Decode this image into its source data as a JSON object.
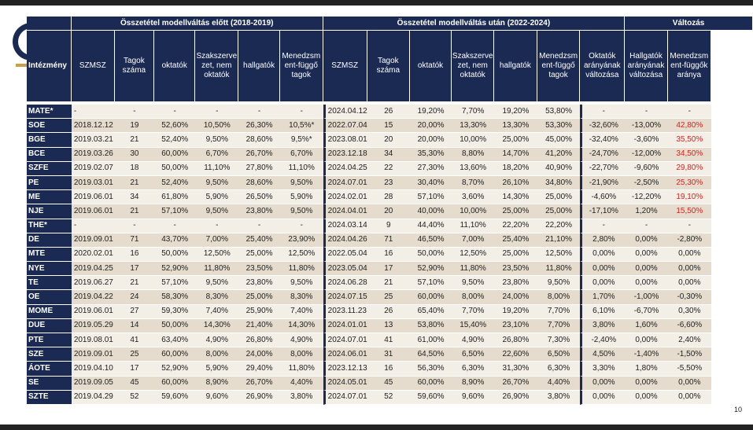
{
  "page_number": "10",
  "table": {
    "groups": [
      "Összetétel modellváltás előtt (2018-2019)",
      "Összetétel modellváltás után (2022-2024)",
      "Változás"
    ],
    "columns": [
      "Intézmény",
      "SZMSZ",
      "Tagok száma",
      "oktatók",
      "Szakszerve zet, nem oktatók",
      "hallgatók",
      "Menedzsm ent-függő tagok",
      "SZMSZ",
      "Tagok száma",
      "oktatók",
      "Szakszerve zet, nem oktatók",
      "hallgatók",
      "Menedzsm ent-függő tagok",
      "Oktatók arányának változása",
      "Hallgatók arányának változása",
      "Menedzsm ent-függők aránya"
    ],
    "red_color": "#e0201c",
    "header_color": "#1b2a52",
    "rows": [
      {
        "inst": "MATE*",
        "before": [
          "-",
          "-",
          "-",
          "-",
          "-",
          "-"
        ],
        "after": [
          "2024.04.12",
          "26",
          "19,20%",
          "7,70%",
          "19,20%",
          "53,80%"
        ],
        "change": [
          "-",
          "-",
          "-"
        ],
        "red": false
      },
      {
        "inst": "SOE",
        "before": [
          "2018.12.12",
          "19",
          "52,60%",
          "10,50%",
          "26,30%",
          "10,5%*"
        ],
        "after": [
          "2022.07.04",
          "15",
          "20,00%",
          "13,30%",
          "13,30%",
          "53,30%"
        ],
        "change": [
          "-32,60%",
          "-13,00%",
          "42,80%"
        ],
        "red": true
      },
      {
        "inst": "BGE",
        "before": [
          "2019.03.21",
          "21",
          "52,40%",
          "9,50%",
          "28,60%",
          "9,5%*"
        ],
        "after": [
          "2023.08.01",
          "20",
          "20,00%",
          "10,00%",
          "25,00%",
          "45,00%"
        ],
        "change": [
          "-32,40%",
          "-3,60%",
          "35,50%"
        ],
        "red": true
      },
      {
        "inst": "BCE",
        "before": [
          "2019.03.26",
          "30",
          "60,00%",
          "6,70%",
          "26,70%",
          "6,70%"
        ],
        "after": [
          "2023.12.18",
          "34",
          "35,30%",
          "8,80%",
          "14,70%",
          "41,20%"
        ],
        "change": [
          "-24,70%",
          "-12,00%",
          "34,50%"
        ],
        "red": true
      },
      {
        "inst": "SZFE",
        "before": [
          "2019.02.07",
          "18",
          "50,00%",
          "11,10%",
          "27,80%",
          "11,10%"
        ],
        "after": [
          "2024.04.25",
          "22",
          "27,30%",
          "13,60%",
          "18,20%",
          "40,90%"
        ],
        "change": [
          "-22,70%",
          "-9,60%",
          "29,80%"
        ],
        "red": true
      },
      {
        "inst": "PE",
        "before": [
          "2019.03.01",
          "21",
          "52,40%",
          "9,50%",
          "28,60%",
          "9,50%"
        ],
        "after": [
          "2024.07.01",
          "23",
          "30,40%",
          "8,70%",
          "26,10%",
          "34,80%"
        ],
        "change": [
          "-21,90%",
          "-2,50%",
          "25,30%"
        ],
        "red": true
      },
      {
        "inst": "ME",
        "before": [
          "2019.06.01",
          "34",
          "61,80%",
          "5,90%",
          "26,50%",
          "5,90%"
        ],
        "after": [
          "2024.02.01",
          "28",
          "57,10%",
          "3,60%",
          "14,30%",
          "25,00%"
        ],
        "change": [
          "-4,60%",
          "-12,20%",
          "19,10%"
        ],
        "red": true
      },
      {
        "inst": "NJE",
        "before": [
          "2019.06.01",
          "21",
          "57,10%",
          "9,50%",
          "23,80%",
          "9,50%"
        ],
        "after": [
          "2024.04.01",
          "20",
          "40,00%",
          "10,00%",
          "25,00%",
          "25,00%"
        ],
        "change": [
          "-17,10%",
          "1,20%",
          "15,50%"
        ],
        "red": true
      },
      {
        "inst": "THE*",
        "before": [
          "-",
          "-",
          "-",
          "-",
          "-",
          "-"
        ],
        "after": [
          "2024.03.14",
          "9",
          "44,40%",
          "11,10%",
          "22,20%",
          "22,20%"
        ],
        "change": [
          "-",
          "-",
          "-"
        ],
        "red": false
      },
      {
        "inst": "DE",
        "before": [
          "2019.09.01",
          "71",
          "43,70%",
          "7,00%",
          "25,40%",
          "23,90%"
        ],
        "after": [
          "2024.04.26",
          "71",
          "46,50%",
          "7,00%",
          "25,40%",
          "21,10%"
        ],
        "change": [
          "2,80%",
          "0,00%",
          "-2,80%"
        ],
        "red": false
      },
      {
        "inst": "MTE",
        "before": [
          "2020.02.01",
          "16",
          "50,00%",
          "12,50%",
          "25,00%",
          "12,50%"
        ],
        "after": [
          "2022.05.04",
          "16",
          "50,00%",
          "12,50%",
          "25,00%",
          "12,50%"
        ],
        "change": [
          "0,00%",
          "0,00%",
          "0,00%"
        ],
        "red": false
      },
      {
        "inst": "NYE",
        "before": [
          "2019.04.25",
          "17",
          "52,90%",
          "11,80%",
          "23,50%",
          "11,80%"
        ],
        "after": [
          "2023.05.04",
          "17",
          "52,90%",
          "11,80%",
          "23,50%",
          "11,80%"
        ],
        "change": [
          "0,00%",
          "0,00%",
          "0,00%"
        ],
        "red": false
      },
      {
        "inst": "TE",
        "before": [
          "2019.06.27",
          "21",
          "57,10%",
          "9,50%",
          "23,80%",
          "9,50%"
        ],
        "after": [
          "2024.06.28",
          "21",
          "57,10%",
          "9,50%",
          "23,80%",
          "9,50%"
        ],
        "change": [
          "0,00%",
          "0,00%",
          "0,00%"
        ],
        "red": false
      },
      {
        "inst": "OE",
        "before": [
          "2019.04.22",
          "24",
          "58,30%",
          "8,30%",
          "25,00%",
          "8,30%"
        ],
        "after": [
          "2024.07.15",
          "25",
          "60,00%",
          "8,00%",
          "24,00%",
          "8,00%"
        ],
        "change": [
          "1,70%",
          "-1,00%",
          "-0,30%"
        ],
        "red": false
      },
      {
        "inst": "MOME",
        "before": [
          "2019.06.01",
          "27",
          "59,30%",
          "7,40%",
          "25,90%",
          "7,40%"
        ],
        "after": [
          "2023.11.23",
          "26",
          "65,40%",
          "7,70%",
          "19,20%",
          "7,70%"
        ],
        "change": [
          "6,10%",
          "-6,70%",
          "0,30%"
        ],
        "red": false
      },
      {
        "inst": "DUE",
        "before": [
          "2019.05.29",
          "14",
          "50,00%",
          "14,30%",
          "21,40%",
          "14,30%"
        ],
        "after": [
          "2024.01.01",
          "13",
          "53,80%",
          "15,40%",
          "23,10%",
          "7,70%"
        ],
        "change": [
          "3,80%",
          "1,60%",
          "-6,60%"
        ],
        "red": false
      },
      {
        "inst": "PTE",
        "before": [
          "2019.08.01",
          "41",
          "63,40%",
          "4,90%",
          "26,80%",
          "4,90%"
        ],
        "after": [
          "2024.07.01",
          "41",
          "61,00%",
          "4,90%",
          "26,80%",
          "7,30%"
        ],
        "change": [
          "-2,40%",
          "0,00%",
          "2,40%"
        ],
        "red": false
      },
      {
        "inst": "SZE",
        "before": [
          "2019.09.01",
          "25",
          "60,00%",
          "8,00%",
          "24,00%",
          "8,00%"
        ],
        "after": [
          "2024.06.01",
          "31",
          "64,50%",
          "6,50%",
          "22,60%",
          "6,50%"
        ],
        "change": [
          "4,50%",
          "-1,40%",
          "-1,50%"
        ],
        "red": false
      },
      {
        "inst": "ÁOTE",
        "before": [
          "2019.04.10",
          "17",
          "52,90%",
          "5,90%",
          "29,40%",
          "11,80%"
        ],
        "after": [
          "2023.12.13",
          "16",
          "56,30%",
          "6,30%",
          "31,30%",
          "6,30%"
        ],
        "change": [
          "3,30%",
          "1,80%",
          "-5,50%"
        ],
        "red": false
      },
      {
        "inst": "SE",
        "before": [
          "2019.09.05",
          "45",
          "60,00%",
          "8,90%",
          "26,70%",
          "4,40%"
        ],
        "after": [
          "2024.05.01",
          "45",
          "60,00%",
          "8,90%",
          "26,70%",
          "4,40%"
        ],
        "change": [
          "0,00%",
          "0,00%",
          "0,00%"
        ],
        "red": false
      },
      {
        "inst": "SZTE",
        "before": [
          "2019.04.29",
          "52",
          "59,60%",
          "9,60%",
          "26,90%",
          "3,80%"
        ],
        "after": [
          "2024.07.01",
          "52",
          "59,60%",
          "9,60%",
          "26,90%",
          "3,80%"
        ],
        "change": [
          "0,00%",
          "0,00%",
          "0,00%"
        ],
        "red": false
      }
    ]
  }
}
